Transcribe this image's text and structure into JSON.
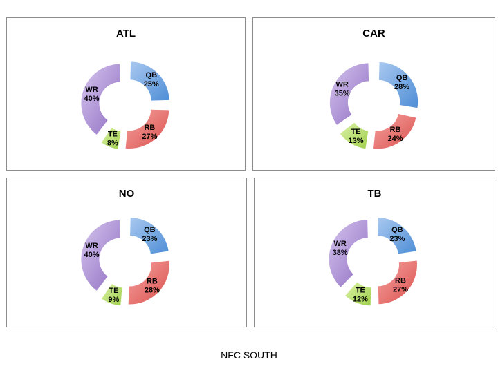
{
  "page_title": "NFC SOUTH",
  "colors": {
    "QB": [
      "#a8c8f0",
      "#4f8ed6"
    ],
    "RB": [
      "#f6a3a1",
      "#d9504c"
    ],
    "TE": [
      "#dcf2a6",
      "#9fcf4c"
    ],
    "WR": [
      "#d6c6ee",
      "#8f6dc2"
    ]
  },
  "chart_data": [
    {
      "type": "pie",
      "title": "ATL",
      "categories": [
        "QB",
        "RB",
        "TE",
        "WR"
      ],
      "values": [
        25,
        27,
        8,
        40
      ],
      "labels": [
        "25%",
        "27%",
        "8%",
        "40%"
      ]
    },
    {
      "type": "pie",
      "title": "CAR",
      "categories": [
        "QB",
        "RB",
        "TE",
        "WR"
      ],
      "values": [
        28,
        24,
        13,
        35
      ],
      "labels": [
        "28%",
        "24%",
        "13%",
        "35%"
      ]
    },
    {
      "type": "pie",
      "title": "NO",
      "categories": [
        "QB",
        "RB",
        "TE",
        "WR"
      ],
      "values": [
        23,
        28,
        9,
        40
      ],
      "labels": [
        "23%",
        "28%",
        "9%",
        "40%"
      ]
    },
    {
      "type": "pie",
      "title": "TB",
      "categories": [
        "QB",
        "RB",
        "TE",
        "WR"
      ],
      "values": [
        23,
        27,
        12,
        38
      ],
      "labels": [
        "23%",
        "27%",
        "12%",
        "38%"
      ]
    }
  ]
}
